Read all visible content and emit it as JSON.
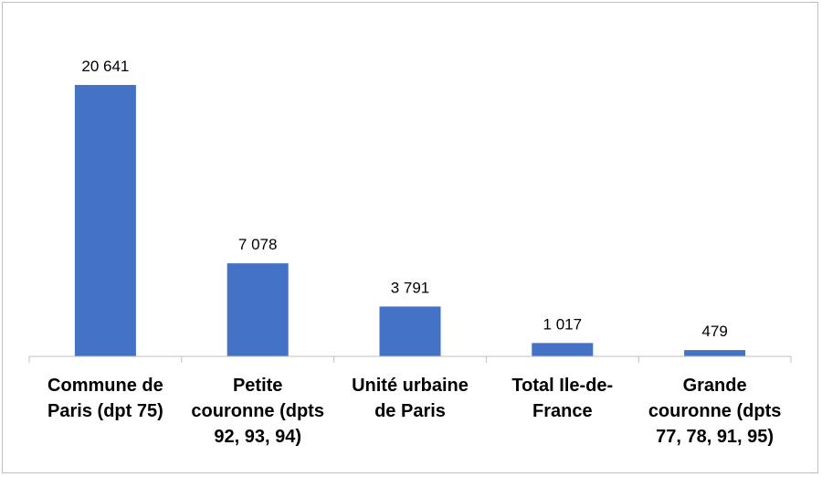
{
  "chart_data": {
    "type": "bar",
    "categories": [
      [
        "Commune de",
        "Paris (dpt 75)"
      ],
      [
        "Petite",
        "couronne (dpts",
        "92, 93, 94)"
      ],
      [
        "Unité urbaine",
        "de Paris"
      ],
      [
        "Total Ile-de-",
        "France"
      ],
      [
        "Grande",
        "couronne (dpts",
        "77, 78, 91, 95)"
      ]
    ],
    "values": [
      20641,
      7078,
      3791,
      1017,
      479
    ],
    "value_labels": [
      "20 641",
      "7 078",
      "3 791",
      "1 017",
      "479"
    ],
    "title": "",
    "xlabel": "",
    "ylabel": "",
    "ylim": [
      0,
      22000
    ],
    "grid": false,
    "legend": "none",
    "colors": {
      "bar": "#4472C4",
      "axis": "#bfbfbf"
    }
  }
}
